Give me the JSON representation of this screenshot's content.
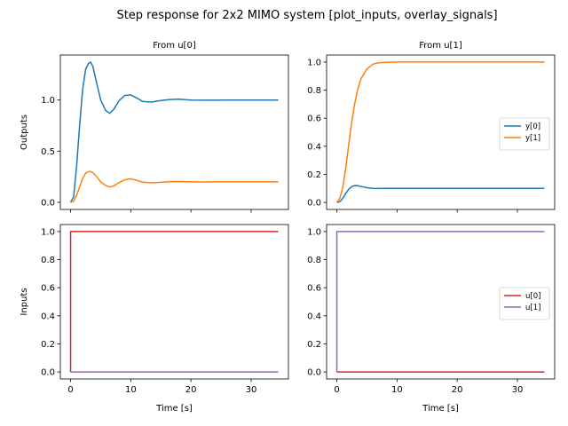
{
  "figure": {
    "title": "Step response for 2x2 MIMO system [plot_inputs, overlay_signals]"
  },
  "colors": {
    "y0": "#1f77b4",
    "y1": "#ff7f0e",
    "u0": "#d62728",
    "u1": "#9467bd"
  },
  "chart_data": [
    {
      "type": "line",
      "panel": "top-left",
      "title": "From u[0]",
      "xlabel": "",
      "ylabel": "Outputs",
      "xlim": [
        -1.7,
        36.2
      ],
      "ylim": [
        -0.07,
        1.44
      ],
      "xticks": [
        0,
        10,
        20,
        30
      ],
      "xticklabels": [
        "",
        "",
        "",
        ""
      ],
      "yticks": [
        0.0,
        0.5,
        1.0
      ],
      "yticklabels": [
        "0.0",
        "0.5",
        "1.0"
      ],
      "series": [
        {
          "key": "y0",
          "x": [
            0,
            0.5,
            1,
            1.5,
            2,
            2.5,
            3,
            3.3,
            3.7,
            4.2,
            5,
            5.8,
            6.5,
            7.2,
            8,
            9,
            10,
            11,
            12,
            13.5,
            15,
            16.5,
            18,
            20,
            22,
            24,
            26,
            28,
            30,
            32,
            34.5
          ],
          "values": [
            0,
            0.05,
            0.35,
            0.75,
            1.1,
            1.3,
            1.36,
            1.37,
            1.33,
            1.2,
            1.0,
            0.9,
            0.87,
            0.91,
            0.99,
            1.045,
            1.05,
            1.02,
            0.985,
            0.98,
            0.995,
            1.005,
            1.008,
            1.0,
            0.998,
            0.999,
            1.0,
            1.0,
            1.0,
            1.0,
            1.0
          ]
        },
        {
          "key": "y1",
          "x": [
            0,
            0.5,
            1,
            1.5,
            2,
            2.5,
            3,
            3.3,
            3.7,
            4.2,
            5,
            5.8,
            6.5,
            7.2,
            8,
            9,
            10,
            11,
            12,
            13.5,
            15,
            16.5,
            18,
            20,
            22,
            24,
            26,
            28,
            30,
            32,
            34.5
          ],
          "values": [
            0,
            0.01,
            0.07,
            0.15,
            0.23,
            0.285,
            0.3,
            0.3,
            0.29,
            0.26,
            0.2,
            0.165,
            0.15,
            0.16,
            0.19,
            0.22,
            0.23,
            0.215,
            0.197,
            0.19,
            0.196,
            0.202,
            0.203,
            0.2,
            0.199,
            0.2,
            0.2,
            0.2,
            0.2,
            0.2,
            0.2
          ]
        }
      ]
    },
    {
      "type": "line",
      "panel": "top-right",
      "title": "From u[1]",
      "xlabel": "",
      "ylabel": "",
      "xlim": [
        -1.7,
        36.2
      ],
      "ylim": [
        -0.05,
        1.05
      ],
      "xticks": [
        0,
        10,
        20,
        30
      ],
      "xticklabels": [
        "",
        "",
        "",
        ""
      ],
      "yticks": [
        0.0,
        0.2,
        0.4,
        0.6,
        0.8,
        1.0
      ],
      "yticklabels": [
        "0.0",
        "0.2",
        "0.4",
        "0.6",
        "0.8",
        "1.0"
      ],
      "legend": {
        "placement": "center-right",
        "entries": [
          "y[0]",
          "y[1]"
        ]
      },
      "series": [
        {
          "key": "y0",
          "name": "y[0]",
          "x": [
            0,
            0.5,
            1,
            1.5,
            2,
            2.5,
            3,
            3.5,
            4,
            5,
            6,
            7,
            8,
            10,
            15,
            20,
            25,
            30,
            34.5
          ],
          "values": [
            0,
            0.005,
            0.03,
            0.065,
            0.095,
            0.113,
            0.12,
            0.119,
            0.114,
            0.105,
            0.1,
            0.099,
            0.1,
            0.1,
            0.1,
            0.1,
            0.1,
            0.1,
            0.1
          ]
        },
        {
          "key": "y1",
          "name": "y[1]",
          "x": [
            0,
            0.5,
            1,
            1.5,
            2,
            2.5,
            3,
            3.5,
            4,
            5,
            6,
            7,
            8,
            10,
            15,
            20,
            25,
            30,
            34.5
          ],
          "values": [
            0,
            0.03,
            0.11,
            0.25,
            0.42,
            0.58,
            0.71,
            0.81,
            0.88,
            0.95,
            0.985,
            0.995,
            0.998,
            1.0,
            1.0,
            1.0,
            1.0,
            1.0,
            1.0
          ]
        }
      ]
    },
    {
      "type": "line",
      "panel": "bottom-left",
      "title": "",
      "xlabel": "Time [s]",
      "ylabel": "Inputs",
      "xlim": [
        -1.7,
        36.2
      ],
      "ylim": [
        -0.05,
        1.05
      ],
      "xticks": [
        0,
        10,
        20,
        30
      ],
      "xticklabels": [
        "0",
        "10",
        "20",
        "30"
      ],
      "yticks": [
        0.0,
        0.2,
        0.4,
        0.6,
        0.8,
        1.0
      ],
      "yticklabels": [
        "0.0",
        "0.2",
        "0.4",
        "0.6",
        "0.8",
        "1.0"
      ],
      "series": [
        {
          "key": "u0",
          "x": [
            0,
            0,
            34.5
          ],
          "values": [
            0,
            1,
            1
          ]
        },
        {
          "key": "u1",
          "x": [
            0,
            34.5
          ],
          "values": [
            0,
            0
          ]
        }
      ]
    },
    {
      "type": "line",
      "panel": "bottom-right",
      "title": "",
      "xlabel": "Time [s]",
      "ylabel": "",
      "xlim": [
        -1.7,
        36.2
      ],
      "ylim": [
        -0.05,
        1.05
      ],
      "xticks": [
        0,
        10,
        20,
        30
      ],
      "xticklabels": [
        "0",
        "10",
        "20",
        "30"
      ],
      "yticks": [
        0.0,
        0.2,
        0.4,
        0.6,
        0.8,
        1.0
      ],
      "yticklabels": [
        "0.0",
        "0.2",
        "0.4",
        "0.6",
        "0.8",
        "1.0"
      ],
      "legend": {
        "placement": "center-right",
        "entries": [
          "u[0]",
          "u[1]"
        ]
      },
      "series": [
        {
          "key": "u0",
          "name": "u[0]",
          "x": [
            0,
            34.5
          ],
          "values": [
            0,
            0
          ]
        },
        {
          "key": "u1",
          "name": "u[1]",
          "x": [
            0,
            0,
            34.5
          ],
          "values": [
            0,
            1,
            1
          ]
        }
      ]
    }
  ]
}
